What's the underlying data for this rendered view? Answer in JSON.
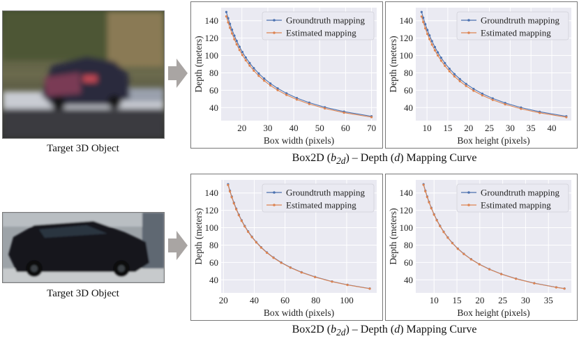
{
  "rows": [
    {
      "object_label": "Target 3D Object",
      "mapping_caption_prefix": "Box2D (",
      "mapping_caption_var1": "b",
      "mapping_caption_sub1": "2d",
      "mapping_caption_mid": ") – Depth (",
      "mapping_caption_var2": "d",
      "mapping_caption_suffix": ") Mapping Curve"
    },
    {
      "object_label": "Target 3D Object",
      "mapping_caption_prefix": "Box2D (",
      "mapping_caption_var1": "b",
      "mapping_caption_sub1": "2d",
      "mapping_caption_mid": ") – Depth (",
      "mapping_caption_var2": "d",
      "mapping_caption_suffix": ") Mapping Curve"
    }
  ],
  "colors": {
    "groundtruth": "#4c72b0",
    "estimated": "#dd8452",
    "plot_bg": "#eaeaf2",
    "grid": "#ffffff"
  },
  "chart_data": [
    {
      "type": "line",
      "xlabel": "Box width (pixels)",
      "ylabel": "Depth (meters)",
      "xlim": [
        12,
        72
      ],
      "ylim": [
        25,
        155
      ],
      "xticks": [
        20,
        30,
        40,
        50,
        60,
        70
      ],
      "yticks": [
        40,
        60,
        80,
        100,
        120,
        140
      ],
      "legend": "top-right",
      "series": [
        {
          "name": "Groundtruth mapping",
          "k": 2100,
          "x": [
            14,
            14.7,
            15.4,
            16.2,
            17.1,
            18,
            19.1,
            20.2,
            21.5,
            23,
            24.6,
            26.5,
            28.6,
            31,
            33.8,
            37.2,
            41.2,
            46,
            52,
            59.4,
            70
          ]
        },
        {
          "name": "Estimated mapping",
          "k": 2030,
          "x": [
            14,
            14.7,
            15.4,
            16.2,
            17.1,
            18,
            19.1,
            20.2,
            21.5,
            23,
            24.6,
            26.5,
            28.6,
            31,
            33.8,
            37.2,
            41.2,
            46,
            52,
            59.4,
            70
          ]
        }
      ]
    },
    {
      "type": "line",
      "xlabel": "Box height (pixels)",
      "ylabel": "Depth (meters)",
      "xlim": [
        7.3,
        44.7
      ],
      "ylim": [
        25,
        155
      ],
      "xticks": [
        10,
        15,
        20,
        25,
        30,
        35,
        40
      ],
      "yticks": [
        40,
        60,
        80,
        100,
        120,
        140
      ],
      "legend": "top-right",
      "series": [
        {
          "name": "Groundtruth mapping",
          "k": 1305,
          "x": [
            8.7,
            9.1,
            9.6,
            10.1,
            10.6,
            11.2,
            11.9,
            12.6,
            13.4,
            14.3,
            15.4,
            16.6,
            17.9,
            19.4,
            21.2,
            23.3,
            25.8,
            28.8,
            32.6,
            37.1,
            43.5
          ]
        },
        {
          "name": "Estimated mapping",
          "k": 1260,
          "x": [
            8.7,
            9.1,
            9.6,
            10.1,
            10.6,
            11.2,
            11.9,
            12.6,
            13.4,
            14.3,
            15.4,
            16.6,
            17.9,
            19.4,
            21.2,
            23.3,
            25.8,
            28.8,
            32.6,
            37.1,
            43.5
          ]
        }
      ]
    },
    {
      "type": "line",
      "xlabel": "Box width (pixels)",
      "ylabel": "Depth (meters)",
      "xlim": [
        18.5,
        119.5
      ],
      "ylim": [
        25,
        155
      ],
      "xticks": [
        20,
        40,
        60,
        80,
        100
      ],
      "yticks": [
        40,
        60,
        80,
        100,
        120,
        140
      ],
      "legend": "top-right",
      "series": [
        {
          "name": "Groundtruth mapping",
          "k": 3450,
          "x": [
            23,
            24.2,
            25.4,
            26.8,
            28.3,
            30,
            31.8,
            33.8,
            36,
            38.5,
            41.3,
            44.5,
            48.2,
            52.5,
            57.5,
            63.5,
            70.7,
            79.5,
            90.5,
            100.5,
            115
          ]
        },
        {
          "name": "Estimated mapping",
          "k": 3430,
          "x": [
            23,
            24.2,
            25.4,
            26.8,
            28.3,
            30,
            31.8,
            33.8,
            36,
            38.5,
            41.3,
            44.5,
            48.2,
            52.5,
            57.5,
            63.5,
            70.7,
            79.5,
            90.5,
            100.5,
            115
          ]
        }
      ]
    },
    {
      "type": "line",
      "xlabel": "Box height (pixels)",
      "ylabel": "Depth (meters)",
      "xlim": [
        6.0,
        40.0
      ],
      "ylim": [
        25,
        155
      ],
      "xticks": [
        10,
        15,
        20,
        25,
        30,
        35
      ],
      "yticks": [
        40,
        60,
        80,
        100,
        120,
        140
      ],
      "legend": "top-right",
      "series": [
        {
          "name": "Groundtruth mapping",
          "k": 1155,
          "x": [
            7.7,
            8.1,
            8.5,
            8.9,
            9.4,
            10,
            10.6,
            11.3,
            12.1,
            13,
            14,
            15.2,
            16.5,
            18.1,
            19.9,
            22.1,
            24.7,
            27.9,
            31.9,
            36.7,
            38.5
          ]
        },
        {
          "name": "Estimated mapping",
          "k": 1150,
          "x": [
            7.7,
            8.1,
            8.5,
            8.9,
            9.4,
            10,
            10.6,
            11.3,
            12.1,
            13,
            14,
            15.2,
            16.5,
            18.1,
            19.9,
            22.1,
            24.7,
            27.9,
            31.9,
            36.7,
            38.5
          ]
        }
      ]
    }
  ]
}
